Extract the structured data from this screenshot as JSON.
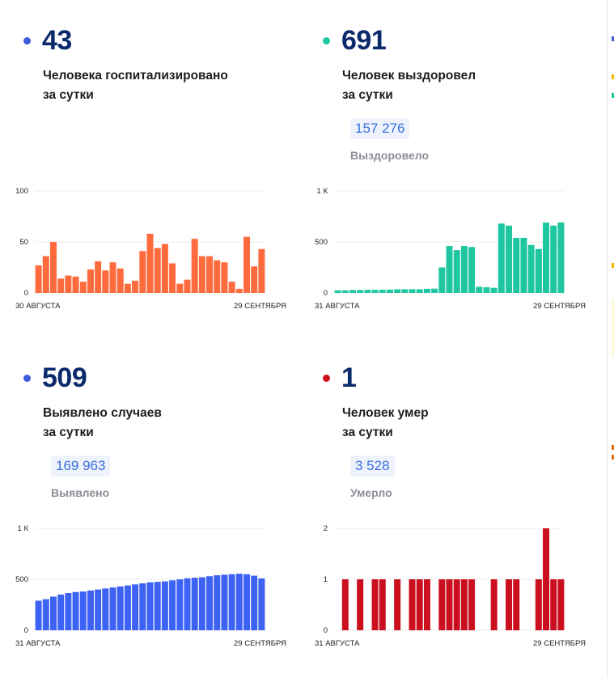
{
  "panels": {
    "hospitalized": {
      "value": "43",
      "line1": "Человека госпитализировано",
      "line2": "за сутки",
      "color": "#ff6b3d",
      "dot_color": "#3b5bdb",
      "start": "30 АВГУСТА",
      "end": "29 СЕНТЯБРЯ",
      "yticks": [
        "100",
        "50",
        "0"
      ]
    },
    "recovered": {
      "value": "691",
      "line1": "Человек выздоровел",
      "line2": "за сутки",
      "total": "157 276",
      "total_label": "Выздоровело",
      "color": "#1ec7a0",
      "dot_color": "#1ec7a0",
      "start": "31 АВГУСТА",
      "end": "29 СЕНТЯБРЯ",
      "yticks": [
        "1 К",
        "500",
        "0"
      ]
    },
    "cases": {
      "value": "509",
      "line1": "Выявлено случаев",
      "line2": "за сутки",
      "total": "169 963",
      "total_label": "Выявлено",
      "color": "#3d63f5",
      "dot_color": "#3b5bdb",
      "start": "31 АВГУСТА",
      "end": "29 СЕНТЯБРЯ",
      "yticks": [
        "1 К",
        "500",
        "0"
      ]
    },
    "deaths": {
      "value": "1",
      "line1": "Человек умер",
      "line2": "за сутки",
      "total": "3 528",
      "total_label": "Умерло",
      "color": "#cc0f1e",
      "dot_color": "#cc0f1e",
      "start": "31 АВГУСТА",
      "end": "29 СЕНТЯБРЯ",
      "yticks": [
        "2",
        "1",
        "0"
      ]
    }
  },
  "chart_data": [
    {
      "type": "bar",
      "x_start": "30 АВГУСТА",
      "x_end": "29 СЕНТЯБРЯ",
      "ylim": [
        0,
        100
      ],
      "yticks": [
        0,
        50,
        100
      ],
      "grid": true,
      "values": [
        27,
        36,
        50,
        14,
        17,
        16,
        11,
        23,
        31,
        22,
        30,
        24,
        9,
        12,
        41,
        58,
        44,
        48,
        29,
        9,
        13,
        53,
        36,
        36,
        32,
        30,
        11,
        4,
        55,
        26,
        43
      ]
    },
    {
      "type": "bar",
      "x_start": "31 АВГУСТА",
      "x_end": "29 СЕНТЯБРЯ",
      "ylim": [
        0,
        1000
      ],
      "yticks": [
        0,
        500,
        1000
      ],
      "grid": true,
      "values": [
        25,
        25,
        28,
        28,
        30,
        30,
        30,
        32,
        35,
        35,
        36,
        36,
        40,
        42,
        250,
        460,
        420,
        460,
        450,
        60,
        55,
        50,
        680,
        660,
        540,
        540,
        470,
        430,
        690,
        660,
        691
      ]
    },
    {
      "type": "bar",
      "x_start": "31 АВГУСТА",
      "x_end": "29 СЕНТЯБРЯ",
      "ylim": [
        0,
        1000
      ],
      "yticks": [
        0,
        500,
        1000
      ],
      "grid": true,
      "values": [
        290,
        305,
        330,
        350,
        365,
        375,
        380,
        390,
        400,
        410,
        420,
        430,
        440,
        450,
        460,
        470,
        475,
        480,
        490,
        500,
        510,
        515,
        520,
        530,
        540,
        545,
        550,
        555,
        550,
        535,
        509
      ]
    },
    {
      "type": "bar",
      "x_start": "31 АВГУСТА",
      "x_end": "29 СЕНТЯБРЯ",
      "ylim": [
        0,
        2
      ],
      "yticks": [
        0,
        1,
        2
      ],
      "grid": true,
      "values": [
        0,
        1,
        0,
        1,
        0,
        1,
        1,
        0,
        1,
        0,
        1,
        1,
        1,
        0,
        1,
        1,
        1,
        1,
        1,
        0,
        0,
        1,
        0,
        1,
        1,
        0,
        0,
        1,
        2,
        1,
        1
      ]
    }
  ]
}
